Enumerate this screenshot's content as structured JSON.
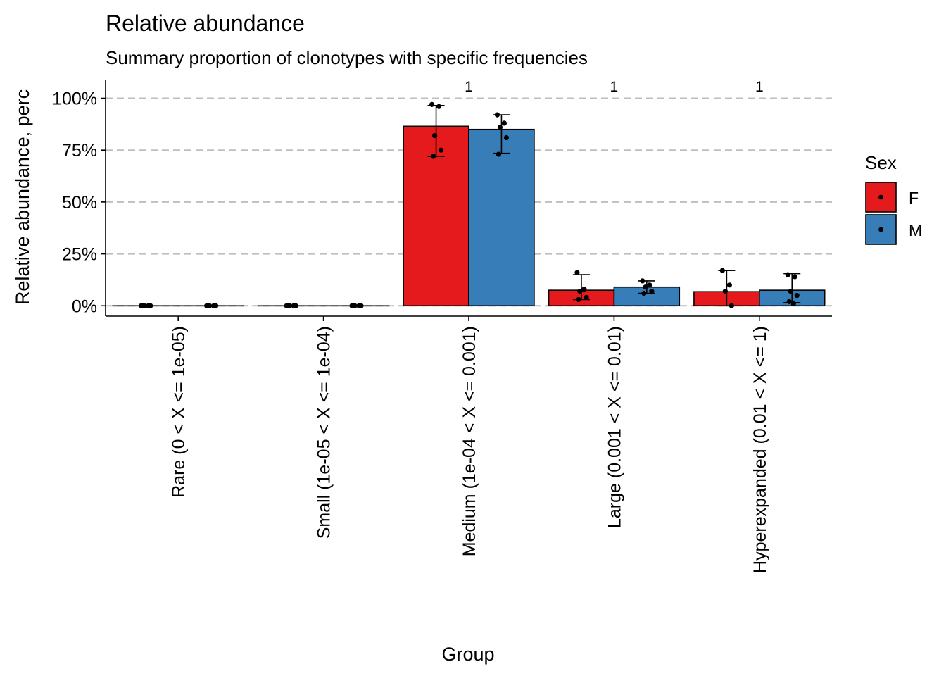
{
  "chart_data": {
    "type": "bar",
    "title": "Relative abundance",
    "subtitle": "Summary proportion of clonotypes with specific frequencies",
    "xlabel": "Group",
    "ylabel": "Relative abundance, perc",
    "ylim": [
      -0.05,
      1.09
    ],
    "yticks": [
      0,
      0.25,
      0.5,
      0.75,
      1.0
    ],
    "ytick_labels": [
      "0%",
      "25%",
      "50%",
      "75%",
      "100%"
    ],
    "grid": "horizontal-dashed",
    "legend_position": "right",
    "legend_title": "Sex",
    "categories": [
      "Rare (0 < X <= 1e-05)",
      "Small (1e-05 < X <= 1e-04)",
      "Medium (1e-04 < X <= 0.001)",
      "Large (0.001 < X <= 0.01)",
      "Hyperexpanded (0.01 < X <= 1)"
    ],
    "series": [
      {
        "name": "F",
        "color": "#E41A1C",
        "values": [
          0,
          0,
          0.865,
          0.075,
          0.068
        ],
        "error_low": [
          0,
          0,
          0.72,
          0.03,
          0.0
        ],
        "error_high": [
          0,
          0,
          0.965,
          0.15,
          0.17
        ],
        "points": [
          [
            0,
            0,
            0,
            0,
            0
          ],
          [
            0,
            0,
            0,
            0,
            0
          ],
          [
            0.97,
            0.96,
            0.82,
            0.75,
            0.72
          ],
          [
            0.16,
            0.08,
            0.07,
            0.04,
            0.03
          ],
          [
            0.17,
            0.1,
            0.07,
            0.0
          ]
        ]
      },
      {
        "name": "M",
        "color": "#377EB8",
        "values": [
          0,
          0,
          0.85,
          0.09,
          0.075
        ],
        "error_low": [
          0,
          0,
          0.735,
          0.06,
          0.015
        ],
        "error_high": [
          0,
          0,
          0.92,
          0.12,
          0.155
        ],
        "points": [
          [
            0,
            0,
            0,
            0,
            0
          ],
          [
            0,
            0,
            0,
            0,
            0
          ],
          [
            0.92,
            0.88,
            0.86,
            0.81,
            0.73
          ],
          [
            0.12,
            0.1,
            0.09,
            0.07,
            0.06
          ],
          [
            0.15,
            0.14,
            0.07,
            0.05,
            0.02,
            0.01
          ]
        ]
      }
    ],
    "annotations": [
      {
        "category_index": 2,
        "text": "1"
      },
      {
        "category_index": 3,
        "text": "1"
      },
      {
        "category_index": 4,
        "text": "1"
      }
    ],
    "colors": {
      "F": "#E41A1C",
      "M": "#377EB8",
      "grid": "#BEBEBE",
      "axis": "#000000"
    }
  }
}
